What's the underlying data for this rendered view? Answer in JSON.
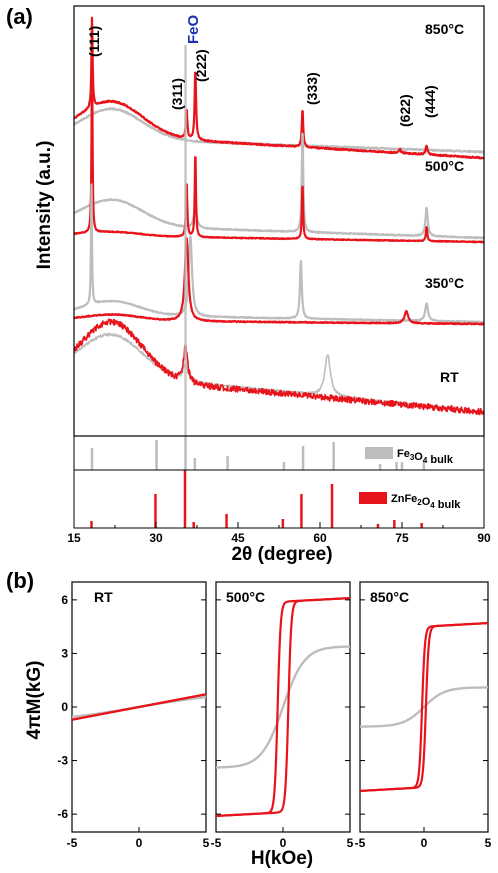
{
  "colors": {
    "film": "#e8141b",
    "fe3o4": "#bdbdbd",
    "feo_label": "#1a2fb5",
    "axis": "#000000"
  },
  "panel_a": {
    "label": "(a)",
    "ylabel": "Intensity (a.u.)",
    "xlabel": "2θ (degree)",
    "xticks": [
      "15",
      "30",
      "45",
      "60",
      "75",
      "90"
    ],
    "feo_label": "FeO",
    "peak_labels": [
      {
        "text": "(111)",
        "x": 18.3
      },
      {
        "text": "(311)",
        "x": 35.2
      },
      {
        "text": "(222)",
        "x": 37.2
      },
      {
        "text": "(333)",
        "x": 56.8
      },
      {
        "text": "(622)",
        "x": 74.6
      },
      {
        "text": "(444)",
        "x": 79.5
      }
    ],
    "temps": [
      "850°C",
      "500°C",
      "350°C",
      "RT"
    ],
    "legend_fe3o4": "Fe3O4 bulk",
    "legend_znfe2o4": "ZnFe2O4 bulk"
  },
  "panel_b": {
    "label": "(b)",
    "ylabel": "4πM(kG)",
    "xlabel": "H(kOe)",
    "yticks": [
      "6",
      "3",
      "0",
      "-3",
      "-6"
    ],
    "xticks": [
      "-5",
      "0",
      "5"
    ],
    "titles": [
      "RT",
      "500°C",
      "850°C"
    ]
  },
  "chart_data": [
    {
      "type": "line",
      "title": "(a)",
      "xlabel": "2θ (degree)",
      "ylabel": "Intensity (a.u.)",
      "xlim": [
        15,
        90
      ],
      "series": [
        {
          "name": "850°C",
          "peaks": [
            [
              18.3,
              "(111)"
            ],
            [
              35.6,
              "(311)"
            ],
            [
              37.2,
              "(222)"
            ],
            [
              56.8,
              "(333)"
            ],
            [
              74.6,
              "(622)"
            ],
            [
              79.5,
              "(444)"
            ]
          ]
        },
        {
          "name": "500°C",
          "peaks": [
            [
              18.3,
              "(111)"
            ],
            [
              35.6,
              "(311)"
            ],
            [
              37.2,
              "(222)"
            ],
            [
              56.8,
              "(333)"
            ],
            [
              79.5,
              "(444)"
            ]
          ]
        },
        {
          "name": "350°C",
          "peaks": [
            [
              18.2,
              ""
            ],
            [
              35.6,
              "(311)"
            ],
            [
              56.5,
              ""
            ],
            [
              75.8,
              ""
            ],
            [
              79.5,
              ""
            ]
          ]
        },
        {
          "name": "RT",
          "peaks": [
            [
              22,
              "broad"
            ],
            [
              35.3,
              "(311)"
            ],
            [
              61.5,
              ""
            ]
          ]
        }
      ],
      "reference": {
        "Fe3O4 bulk": [
          18.3,
          30.1,
          35.4,
          37.1,
          43.1,
          53.4,
          56.9,
          62.5,
          71.0,
          74.0,
          75.0,
          79.0
        ],
        "ZnFe2O4 bulk": [
          18.2,
          29.9,
          35.3,
          36.9,
          42.9,
          53.2,
          56.6,
          62.2,
          70.6,
          73.6,
          78.6
        ]
      }
    },
    {
      "type": "line",
      "title": "(b)",
      "xlabel": "H(kOe)",
      "ylabel": "4πM(kG)",
      "xlim": [
        -5,
        5
      ],
      "ylim": [
        -7,
        7
      ],
      "yticks": [
        -6,
        -3,
        0,
        3,
        6
      ],
      "panels": [
        {
          "title": "RT",
          "film_ms": 0.75,
          "film_hc": 0.0,
          "fe3o4_ms": 0.9
        },
        {
          "title": "500°C",
          "film_ms": 5.9,
          "film_hc": 0.4,
          "fe3o4_ms": 3.4
        },
        {
          "title": "850°C",
          "film_ms": 4.5,
          "film_hc": 0.15,
          "fe3o4_ms": 1.1
        }
      ]
    }
  ]
}
